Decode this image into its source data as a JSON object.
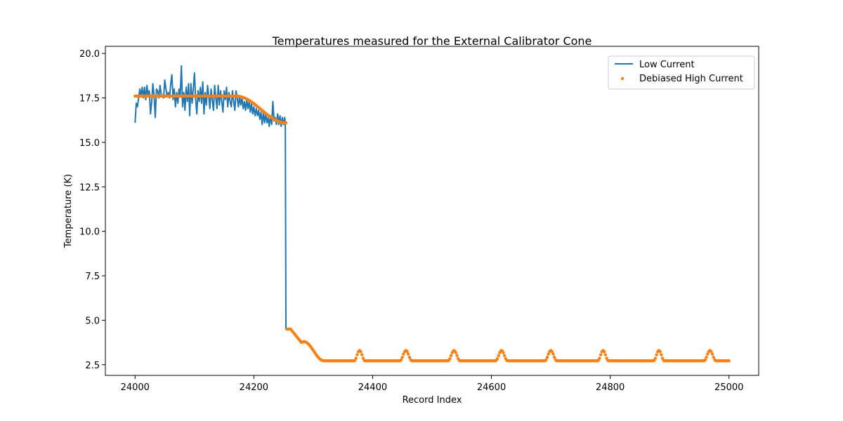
{
  "chart_data": {
    "type": "line",
    "title": "Temperatures measured for the External Calibrator Cone",
    "xlabel": "Record Index",
    "ylabel": "Temperature (K)",
    "xlim": [
      23950,
      25050
    ],
    "ylim": [
      1.9,
      20.4
    ],
    "xticks": [
      24000,
      24200,
      24400,
      24600,
      24800,
      25000
    ],
    "xtick_labels": [
      "24000",
      "24200",
      "24400",
      "24600",
      "24800",
      "25000"
    ],
    "yticks": [
      2.5,
      5.0,
      7.5,
      10.0,
      12.5,
      15.0,
      17.5,
      20.0
    ],
    "ytick_labels": [
      "2.5",
      "5.0",
      "7.5",
      "10.0",
      "12.5",
      "15.0",
      "17.5",
      "20.0"
    ],
    "grid": false,
    "legend_position": "top-right",
    "series": [
      {
        "name": "Low Current",
        "style": "line",
        "color": "#1f77b4",
        "points": [
          [
            24000,
            16.1
          ],
          [
            24002,
            17.2
          ],
          [
            24004,
            17.0
          ],
          [
            24006,
            17.5
          ],
          [
            24008,
            18.0
          ],
          [
            24010,
            17.6
          ],
          [
            24012,
            18.1
          ],
          [
            24014,
            17.5
          ],
          [
            24016,
            18.1
          ],
          [
            24018,
            17.4
          ],
          [
            24020,
            18.2
          ],
          [
            24022,
            17.6
          ],
          [
            24024,
            17.9
          ],
          [
            24026,
            16.6
          ],
          [
            24028,
            17.3
          ],
          [
            24030,
            18.3
          ],
          [
            24032,
            17.6
          ],
          [
            24034,
            16.4
          ],
          [
            24036,
            18.0
          ],
          [
            24038,
            17.9
          ],
          [
            24040,
            17.5
          ],
          [
            24042,
            18.2
          ],
          [
            24044,
            17.7
          ],
          [
            24046,
            17.6
          ],
          [
            24048,
            17.5
          ],
          [
            24050,
            18.5
          ],
          [
            24052,
            18.0
          ],
          [
            24054,
            17.6
          ],
          [
            24056,
            17.8
          ],
          [
            24058,
            17.5
          ],
          [
            24060,
            18.3
          ],
          [
            24062,
            18.8
          ],
          [
            24064,
            17.4
          ],
          [
            24066,
            18.0
          ],
          [
            24068,
            17.0
          ],
          [
            24070,
            17.8
          ],
          [
            24072,
            17.2
          ],
          [
            24074,
            18.0
          ],
          [
            24076,
            17.6
          ],
          [
            24078,
            19.3
          ],
          [
            24080,
            17.0
          ],
          [
            24082,
            17.8
          ],
          [
            24084,
            16.8
          ],
          [
            24086,
            18.1
          ],
          [
            24088,
            17.3
          ],
          [
            24090,
            18.3
          ],
          [
            24092,
            16.5
          ],
          [
            24094,
            18.3
          ],
          [
            24096,
            17.2
          ],
          [
            24098,
            18.0
          ],
          [
            24100,
            18.9
          ],
          [
            24102,
            17.4
          ],
          [
            24104,
            16.6
          ],
          [
            24106,
            17.9
          ],
          [
            24108,
            17.3
          ],
          [
            24110,
            18.1
          ],
          [
            24112,
            17.2
          ],
          [
            24114,
            18.4
          ],
          [
            24116,
            16.6
          ],
          [
            24118,
            17.8
          ],
          [
            24120,
            17.1
          ],
          [
            24122,
            18.2
          ],
          [
            24124,
            17.6
          ],
          [
            24126,
            16.9
          ],
          [
            24128,
            18.0
          ],
          [
            24130,
            17.4
          ],
          [
            24132,
            16.8
          ],
          [
            24134,
            18.2
          ],
          [
            24136,
            17.5
          ],
          [
            24138,
            16.9
          ],
          [
            24140,
            18.2
          ],
          [
            24142,
            17.1
          ],
          [
            24144,
            17.9
          ],
          [
            24146,
            17.3
          ],
          [
            24148,
            16.7
          ],
          [
            24150,
            17.9
          ],
          [
            24152,
            17.4
          ],
          [
            24154,
            18.1
          ],
          [
            24156,
            17.0
          ],
          [
            24158,
            17.8
          ],
          [
            24160,
            17.3
          ],
          [
            24162,
            17.0
          ],
          [
            24164,
            17.9
          ],
          [
            24166,
            17.3
          ],
          [
            24168,
            16.8
          ],
          [
            24170,
            17.9
          ],
          [
            24172,
            17.5
          ],
          [
            24174,
            17.0
          ],
          [
            24176,
            17.6
          ],
          [
            24178,
            17.1
          ],
          [
            24180,
            17.5
          ],
          [
            24182,
            16.9
          ],
          [
            24184,
            17.3
          ],
          [
            24186,
            16.8
          ],
          [
            24188,
            17.4
          ],
          [
            24190,
            16.9
          ],
          [
            24192,
            17.3
          ],
          [
            24194,
            16.7
          ],
          [
            24196,
            17.2
          ],
          [
            24198,
            16.6
          ],
          [
            24200,
            17.0
          ],
          [
            24202,
            16.5
          ],
          [
            24204,
            16.9
          ],
          [
            24206,
            16.5
          ],
          [
            24208,
            16.8
          ],
          [
            24210,
            16.3
          ],
          [
            24212,
            16.7
          ],
          [
            24214,
            16.0
          ],
          [
            24216,
            16.7
          ],
          [
            24218,
            16.1
          ],
          [
            24220,
            16.6
          ],
          [
            24222,
            16.1
          ],
          [
            24224,
            16.4
          ],
          [
            24226,
            15.9
          ],
          [
            24228,
            16.5
          ],
          [
            24230,
            16.0
          ],
          [
            24232,
            17.3
          ],
          [
            24234,
            16.2
          ],
          [
            24236,
            16.4
          ],
          [
            24238,
            16.0
          ],
          [
            24240,
            16.6
          ],
          [
            24242,
            16.0
          ],
          [
            24244,
            16.5
          ],
          [
            24246,
            15.9
          ],
          [
            24248,
            16.4
          ],
          [
            24250,
            16.0
          ],
          [
            24252,
            16.4
          ],
          [
            24253,
            15.9
          ],
          [
            24254,
            4.5
          ],
          [
            24256,
            4.5
          ]
        ]
      },
      {
        "name": "Debiased High Current",
        "style": "scatter",
        "color": "#ff7f0e",
        "curve": {
          "x_start": 24000,
          "x_end": 25000,
          "step": 2,
          "segments": [
            {
              "x_from": 24000,
              "x_to": 24170,
              "shape": "constant",
              "value": 17.6
            },
            {
              "x_from": 24170,
              "x_to": 24254,
              "shape": "smooth",
              "from": 17.6,
              "to": 16.1
            },
            {
              "x_from": 24254,
              "x_to": 24262,
              "shape": "constant",
              "value": 4.5
            },
            {
              "x_from": 24262,
              "x_to": 24280,
              "shape": "linear",
              "from": 4.5,
              "to": 3.75
            },
            {
              "x_from": 24280,
              "x_to": 24284,
              "shape": "linear",
              "from": 3.75,
              "to": 3.8
            },
            {
              "x_from": 24284,
              "x_to": 24318,
              "shape": "smooth",
              "from": 3.8,
              "to": 2.72
            },
            {
              "x_from": 24318,
              "x_to": 25000,
              "shape": "constant",
              "value": 2.72
            }
          ],
          "bumps": [
            {
              "center": 24378,
              "half_width": 9,
              "peak": 3.3
            },
            {
              "center": 24456,
              "half_width": 10,
              "peak": 3.3
            },
            {
              "center": 24537,
              "half_width": 10,
              "peak": 3.3
            },
            {
              "center": 24617,
              "half_width": 10,
              "peak": 3.3
            },
            {
              "center": 24700,
              "half_width": 10,
              "peak": 3.3
            },
            {
              "center": 24788,
              "half_width": 9,
              "peak": 3.3
            },
            {
              "center": 24882,
              "half_width": 9,
              "peak": 3.3
            },
            {
              "center": 24968,
              "half_width": 10,
              "peak": 3.3
            }
          ]
        }
      }
    ]
  }
}
